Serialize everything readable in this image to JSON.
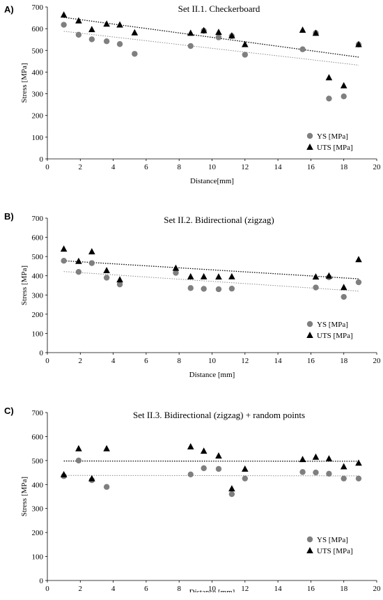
{
  "chart_data": [
    {
      "panel": "A)",
      "type": "scatter",
      "title": "Set II.1. Checkerboard",
      "xlabel": "Distance[mm]",
      "ylabel": "Stress [MPa]",
      "xlim": [
        0,
        20
      ],
      "ylim": [
        0,
        700
      ],
      "xticks": [
        0,
        2,
        4,
        6,
        8,
        10,
        12,
        14,
        16,
        18,
        20
      ],
      "yticks": [
        0,
        100,
        200,
        300,
        400,
        500,
        600,
        700
      ],
      "grid": false,
      "legend_position": "bottom-right",
      "series": [
        {
          "name": "YS [MPa]",
          "marker": "circle",
          "color": "#7f7f7f",
          "x": [
            1.0,
            1.9,
            2.7,
            3.6,
            4.4,
            5.3,
            8.7,
            9.5,
            10.4,
            11.2,
            12.0,
            15.5,
            16.3,
            17.1,
            18.0,
            18.9
          ],
          "y": [
            618,
            572,
            551,
            542,
            529,
            484,
            520,
            590,
            560,
            566,
            480,
            505,
            580,
            278,
            288,
            527
          ],
          "trend": {
            "x": [
              1.0,
              18.9
            ],
            "y": [
              588,
              432
            ]
          }
        },
        {
          "name": "UTS [MPa]",
          "marker": "triangle",
          "color": "#000000",
          "x": [
            1.0,
            1.9,
            2.7,
            3.6,
            4.4,
            5.3,
            8.7,
            9.5,
            10.4,
            11.2,
            12.0,
            15.5,
            16.3,
            17.1,
            18.0,
            18.9
          ],
          "y": [
            664,
            637,
            597,
            622,
            618,
            582,
            580,
            592,
            584,
            568,
            528,
            594,
            580,
            375,
            338,
            528
          ],
          "trend": {
            "x": [
              1.0,
              18.9
            ],
            "y": [
              652,
              469
            ]
          }
        }
      ]
    },
    {
      "panel": "B)",
      "type": "scatter",
      "title": "Set II.2. Bidirectional (zigzag)",
      "xlabel": "Distance [mm]",
      "ylabel": "Stress [MPa]",
      "xlim": [
        0,
        20
      ],
      "ylim": [
        0,
        700
      ],
      "xticks": [
        0,
        2,
        4,
        6,
        8,
        10,
        12,
        14,
        16,
        18,
        20
      ],
      "yticks": [
        0,
        100,
        200,
        300,
        400,
        500,
        600,
        700
      ],
      "grid": false,
      "legend_position": "bottom-right",
      "series": [
        {
          "name": "YS [MPa]",
          "marker": "circle",
          "color": "#7f7f7f",
          "x": [
            1.0,
            1.9,
            2.7,
            3.6,
            4.4,
            7.8,
            8.7,
            9.5,
            10.4,
            11.2,
            16.3,
            17.1,
            18.0,
            18.9
          ],
          "y": [
            478,
            420,
            466,
            390,
            355,
            415,
            336,
            332,
            330,
            333,
            339,
            392,
            290,
            366
          ],
          "trend": {
            "x": [
              1.0,
              18.9
            ],
            "y": [
              422,
              320
            ]
          }
        },
        {
          "name": "UTS [MPa]",
          "marker": "triangle",
          "color": "#000000",
          "x": [
            1.0,
            1.9,
            2.7,
            3.6,
            4.4,
            7.8,
            8.7,
            9.5,
            10.4,
            11.2,
            16.3,
            17.1,
            18.0,
            18.9
          ],
          "y": [
            540,
            476,
            526,
            428,
            380,
            440,
            396,
            396,
            395,
            396,
            395,
            400,
            340,
            485
          ],
          "trend": {
            "x": [
              1.0,
              18.9
            ],
            "y": [
              478,
              384
            ]
          }
        }
      ]
    },
    {
      "panel": "C)",
      "type": "scatter",
      "title": "Set II.3. Bidirectional (zigzag) + random points",
      "xlabel": "Distance [mm]",
      "ylabel": "Stress [MPa]",
      "xlim": [
        0,
        20
      ],
      "ylim": [
        0,
        700
      ],
      "xticks": [
        0,
        2,
        4,
        6,
        8,
        10,
        12,
        14,
        16,
        18,
        20
      ],
      "yticks": [
        0,
        100,
        200,
        300,
        400,
        500,
        600,
        700
      ],
      "grid": false,
      "legend_position": "bottom-right",
      "series": [
        {
          "name": "YS [MPa]",
          "marker": "circle",
          "color": "#7f7f7f",
          "x": [
            1.0,
            1.9,
            2.7,
            3.6,
            8.7,
            9.5,
            10.4,
            11.2,
            12.0,
            15.5,
            16.3,
            17.1,
            18.0,
            18.9
          ],
          "y": [
            435,
            500,
            418,
            390,
            442,
            468,
            465,
            360,
            425,
            452,
            450,
            445,
            425,
            425
          ],
          "trend": {
            "x": [
              1.0,
              18.9
            ],
            "y": [
              438,
              436
            ]
          }
        },
        {
          "name": "UTS [MPa]",
          "marker": "triangle",
          "color": "#000000",
          "x": [
            1.0,
            1.9,
            2.7,
            3.6,
            8.7,
            9.5,
            10.4,
            11.2,
            12.0,
            15.5,
            16.3,
            17.1,
            18.0,
            18.9
          ],
          "y": [
            442,
            550,
            425,
            550,
            558,
            540,
            520,
            383,
            465,
            505,
            515,
            508,
            475,
            490
          ],
          "trend": {
            "x": [
              1.0,
              18.9
            ],
            "y": [
              498,
              497
            ]
          }
        }
      ]
    }
  ]
}
